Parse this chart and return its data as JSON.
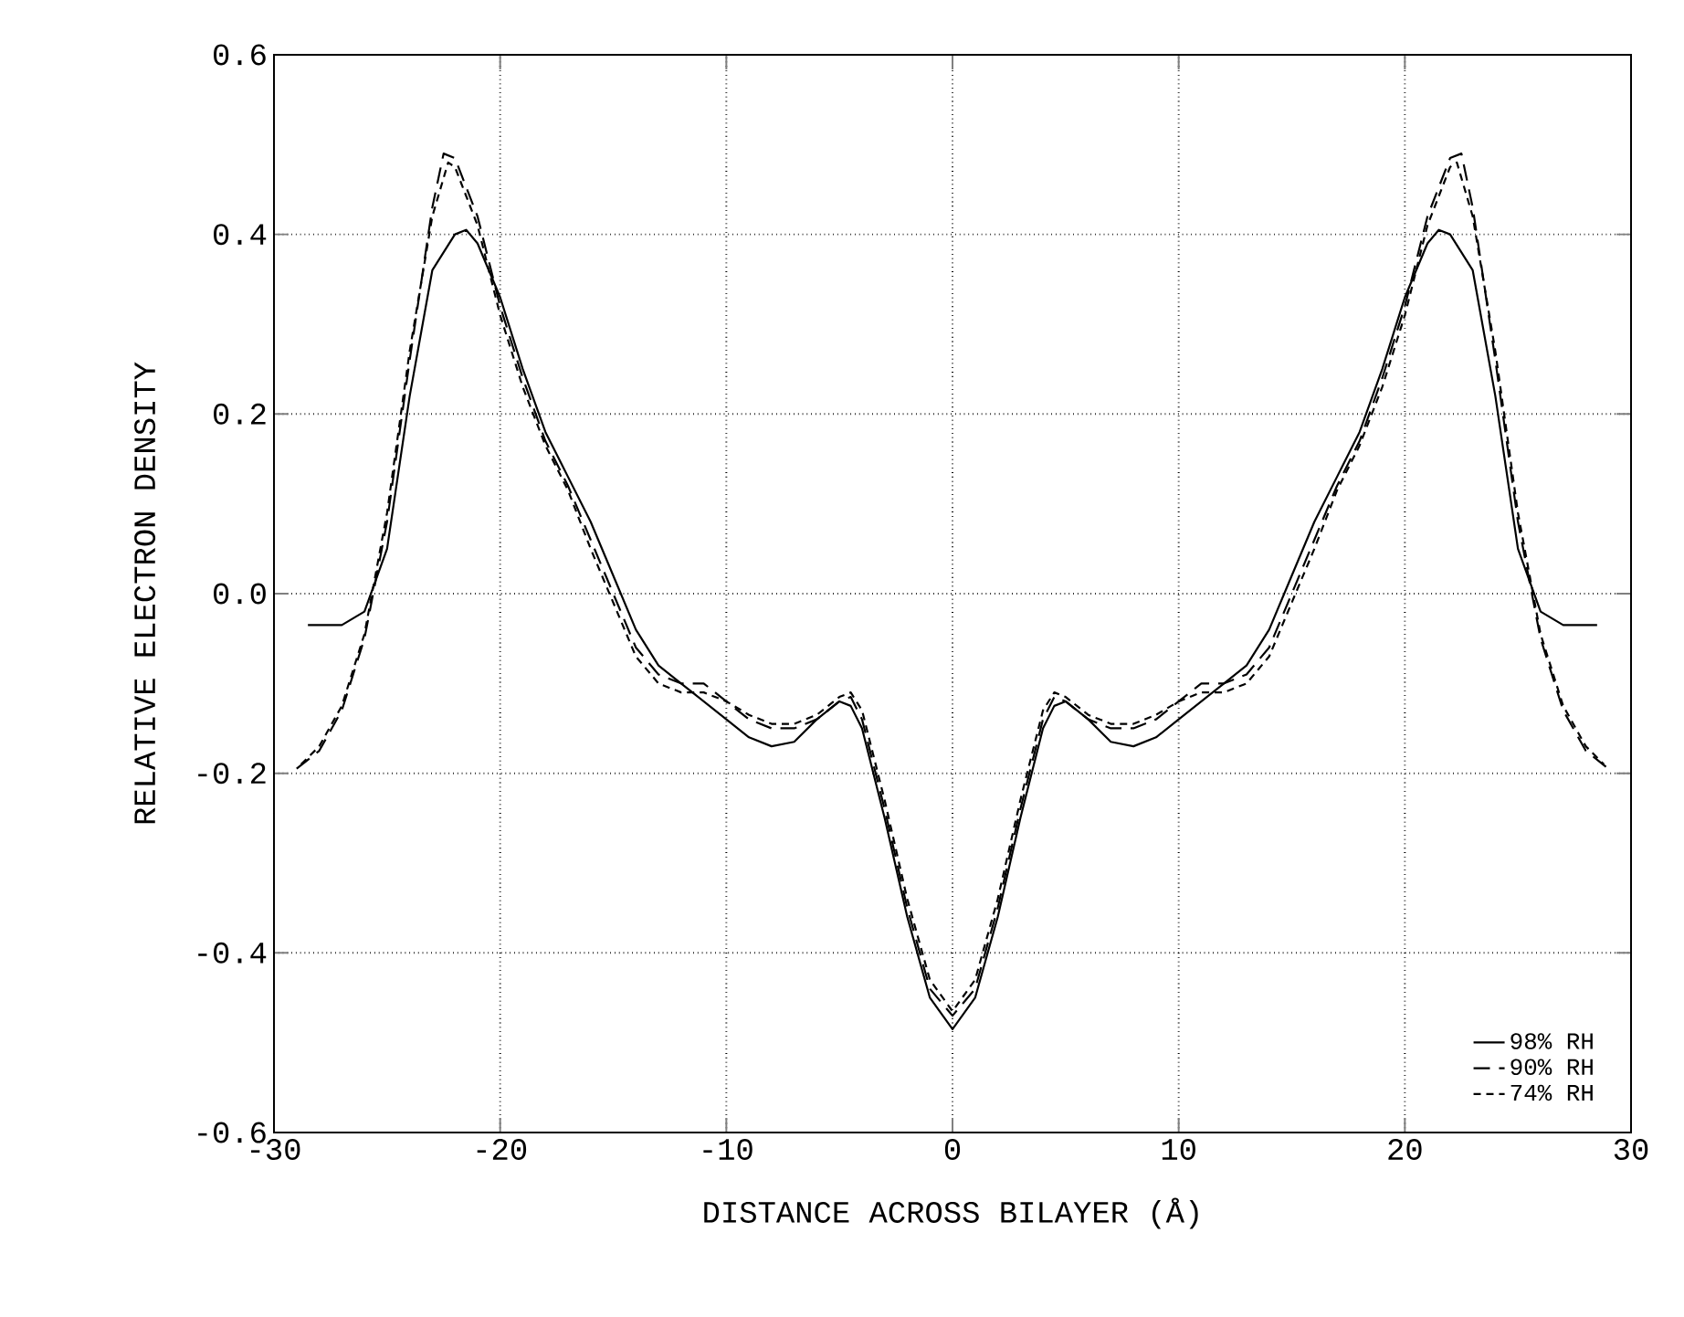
{
  "chart_data": {
    "type": "line",
    "xlabel": "DISTANCE ACROSS BILAYER (Å)",
    "ylabel": "RELATIVE ELECTRON DENSITY",
    "xlim": [
      -30,
      30
    ],
    "ylim": [
      -0.6,
      0.6
    ],
    "xticks": [
      -30,
      -20,
      -10,
      0,
      10,
      20,
      30
    ],
    "yticks": [
      -0.6,
      -0.4,
      -0.2,
      {
        "value": 0,
        "label": "0.0"
      },
      0.2,
      0.4,
      0.6
    ],
    "grid": true,
    "legend": "bottom right",
    "marker": "none",
    "series": [
      {
        "name": "98% RH",
        "color": "#000000",
        "line_style": "solid",
        "x": [
          -28.5,
          -27,
          -26,
          -25,
          -24,
          -23,
          -22,
          -21.5,
          -21,
          -20,
          -19,
          -18,
          -17,
          -16,
          -15,
          -14,
          -13,
          -12,
          -11,
          -10,
          -9,
          -8,
          -7,
          -6,
          -5,
          -4.5,
          -4,
          -3,
          -2,
          -1,
          0,
          1,
          2,
          3,
          4,
          4.5,
          5,
          6,
          7,
          8,
          9,
          10,
          11,
          12,
          13,
          14,
          15,
          16,
          17,
          18,
          19,
          20,
          21,
          21.5,
          22,
          23,
          24,
          25,
          26,
          27,
          28.5
        ],
        "values": [
          -0.035,
          -0.035,
          -0.02,
          0.05,
          0.22,
          0.36,
          0.4,
          0.405,
          0.39,
          0.33,
          0.25,
          0.18,
          0.13,
          0.08,
          0.02,
          -0.04,
          -0.08,
          -0.1,
          -0.12,
          -0.14,
          -0.16,
          -0.17,
          -0.165,
          -0.14,
          -0.12,
          -0.125,
          -0.15,
          -0.25,
          -0.36,
          -0.45,
          -0.485,
          -0.45,
          -0.36,
          -0.25,
          -0.15,
          -0.125,
          -0.12,
          -0.14,
          -0.165,
          -0.17,
          -0.16,
          -0.14,
          -0.12,
          -0.1,
          -0.08,
          -0.04,
          0.02,
          0.08,
          0.13,
          0.18,
          0.25,
          0.33,
          0.39,
          0.405,
          0.4,
          0.36,
          0.22,
          0.05,
          -0.02,
          -0.035,
          -0.035
        ]
      },
      {
        "name": "90% RH",
        "color": "#000000",
        "line_style": "dashed",
        "x": [
          -29,
          -28,
          -27,
          -26,
          -25,
          -24,
          -23,
          -22.5,
          -22,
          -21,
          -20,
          -19,
          -18,
          -17,
          -16,
          -15,
          -14,
          -13,
          -12,
          -11,
          -10,
          -9,
          -8,
          -7,
          -6,
          -5,
          -4.5,
          -4,
          -3,
          -2,
          -1,
          0,
          1,
          2,
          3,
          4,
          4.5,
          5,
          6,
          7,
          8,
          9,
          10,
          11,
          12,
          13,
          14,
          15,
          16,
          17,
          18,
          19,
          20,
          21,
          22,
          22.5,
          23,
          24,
          25,
          26,
          27,
          28,
          29
        ],
        "values": [
          -0.195,
          -0.175,
          -0.13,
          -0.05,
          0.08,
          0.26,
          0.43,
          0.49,
          0.485,
          0.42,
          0.32,
          0.24,
          0.17,
          0.12,
          0.06,
          0.0,
          -0.06,
          -0.09,
          -0.1,
          -0.1,
          -0.12,
          -0.14,
          -0.15,
          -0.15,
          -0.14,
          -0.12,
          -0.115,
          -0.14,
          -0.24,
          -0.35,
          -0.44,
          -0.47,
          -0.44,
          -0.35,
          -0.24,
          -0.14,
          -0.115,
          -0.12,
          -0.14,
          -0.15,
          -0.15,
          -0.14,
          -0.12,
          -0.1,
          -0.1,
          -0.09,
          -0.06,
          0.0,
          0.06,
          0.12,
          0.17,
          0.24,
          0.32,
          0.42,
          0.485,
          0.49,
          0.43,
          0.26,
          0.08,
          -0.05,
          -0.13,
          -0.175,
          -0.195
        ]
      },
      {
        "name": "74% RH",
        "color": "#000000",
        "line_style": "dashed",
        "x": [
          -28.8,
          -28,
          -27,
          -26,
          -25,
          -24,
          -23,
          -22.3,
          -22,
          -21,
          -20,
          -19,
          -18,
          -17,
          -16,
          -15,
          -14,
          -13,
          -12,
          -11,
          -10,
          -9,
          -8,
          -7,
          -6,
          -5,
          -4.5,
          -4,
          -3,
          -2,
          -1,
          0,
          1,
          2,
          3,
          4,
          4.5,
          5,
          6,
          7,
          8,
          9,
          10,
          11,
          12,
          13,
          14,
          15,
          16,
          17,
          18,
          19,
          20,
          21,
          22,
          22.3,
          23,
          24,
          25,
          26,
          27,
          28,
          28.8
        ],
        "values": [
          -0.19,
          -0.17,
          -0.125,
          -0.045,
          0.09,
          0.27,
          0.42,
          0.48,
          0.475,
          0.41,
          0.31,
          0.23,
          0.165,
          0.115,
          0.05,
          -0.01,
          -0.07,
          -0.1,
          -0.11,
          -0.11,
          -0.12,
          -0.135,
          -0.145,
          -0.145,
          -0.135,
          -0.115,
          -0.11,
          -0.13,
          -0.23,
          -0.34,
          -0.43,
          -0.465,
          -0.43,
          -0.34,
          -0.23,
          -0.13,
          -0.11,
          -0.115,
          -0.135,
          -0.145,
          -0.145,
          -0.135,
          -0.12,
          -0.11,
          -0.11,
          -0.1,
          -0.07,
          -0.01,
          0.05,
          0.115,
          0.165,
          0.23,
          0.31,
          0.41,
          0.475,
          0.48,
          0.42,
          0.27,
          0.09,
          -0.045,
          -0.125,
          -0.17,
          -0.19
        ]
      }
    ]
  }
}
